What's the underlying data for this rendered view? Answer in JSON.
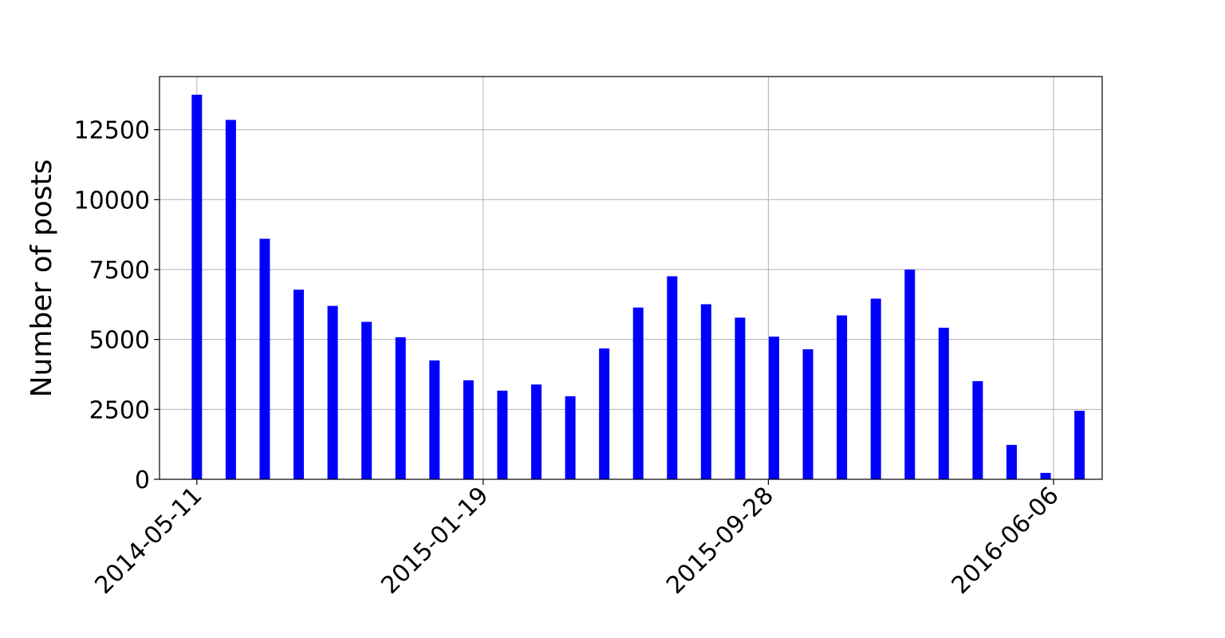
{
  "chart_data": {
    "type": "bar",
    "title": "",
    "xlabel": "",
    "ylabel": "Number of posts",
    "x_axis_type": "date",
    "x_ticks": [
      "2014-05-11",
      "2015-01-19",
      "2015-09-28",
      "2016-06-06"
    ],
    "y_ticks": [
      0,
      2500,
      5000,
      7500,
      10000,
      12500
    ],
    "xlim": [
      "2014-04-08",
      "2016-07-19"
    ],
    "ylim": [
      0,
      14400
    ],
    "grid": true,
    "legend": "none",
    "bar_color": "#0000ff",
    "x": [
      "2014-05-11",
      "2014-06-10",
      "2014-07-10",
      "2014-08-09",
      "2014-09-08",
      "2014-10-08",
      "2014-11-07",
      "2014-12-07",
      "2015-01-06",
      "2015-02-05",
      "2015-03-07",
      "2015-04-06",
      "2015-05-06",
      "2015-06-05",
      "2015-07-05",
      "2015-08-04",
      "2015-09-03",
      "2015-10-03",
      "2015-11-02",
      "2015-12-02",
      "2016-01-01",
      "2016-01-31",
      "2016-03-01",
      "2016-03-31",
      "2016-04-30",
      "2016-05-30",
      "2016-06-29"
    ],
    "values": [
      13750,
      12850,
      8600,
      6780,
      6200,
      5630,
      5080,
      4250,
      3540,
      3170,
      3390,
      2970,
      4680,
      6140,
      7260,
      6260,
      5780,
      5100,
      4650,
      5860,
      6460,
      7500,
      5420,
      3510,
      1230,
      230,
      2450
    ]
  }
}
